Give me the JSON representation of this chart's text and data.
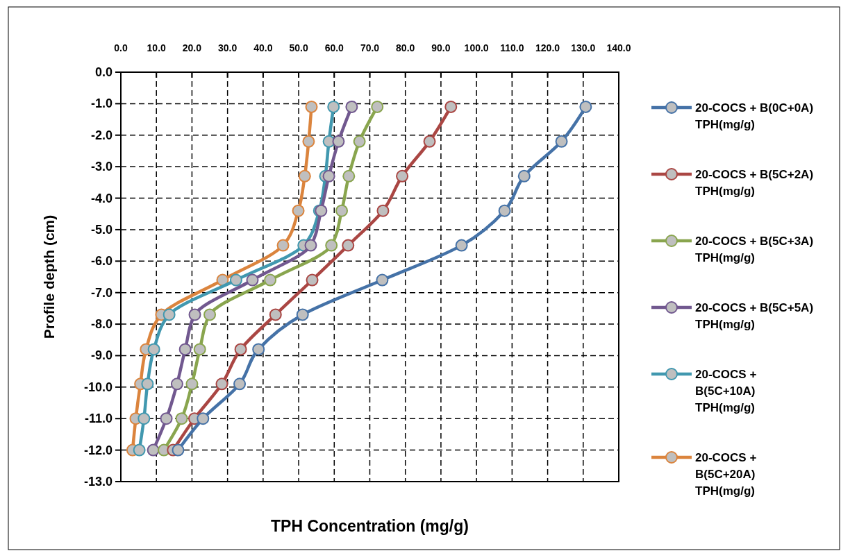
{
  "chart_data": {
    "type": "line",
    "xlabel": "TPH Concentration (mg/g)",
    "ylabel": "Profile depth (cm)",
    "xlim": [
      0,
      140
    ],
    "ylim": [
      -13,
      0
    ],
    "xticks": [
      {
        "value": 0,
        "label": "0.0"
      },
      {
        "value": 10,
        "label": "10.0"
      },
      {
        "value": 20,
        "label": "20.0"
      },
      {
        "value": 30,
        "label": "30.0"
      },
      {
        "value": 40,
        "label": "40.0"
      },
      {
        "value": 50,
        "label": "50.0"
      },
      {
        "value": 60,
        "label": "60.0"
      },
      {
        "value": 70,
        "label": "70.0"
      },
      {
        "value": 80,
        "label": "80.0"
      },
      {
        "value": 90,
        "label": "90.0"
      },
      {
        "value": 100,
        "label": "100.0"
      },
      {
        "value": 110,
        "label": "110.0"
      },
      {
        "value": 120,
        "label": "120.0"
      },
      {
        "value": 130,
        "label": "130.0"
      },
      {
        "value": 140,
        "label": "140.0"
      }
    ],
    "yticks": [
      {
        "value": 0,
        "label": "0.0"
      },
      {
        "value": -1,
        "label": "-1.0"
      },
      {
        "value": -2,
        "label": "-2.0"
      },
      {
        "value": -3,
        "label": "-3.0"
      },
      {
        "value": -4,
        "label": "-4.0"
      },
      {
        "value": -5,
        "label": "-5.0"
      },
      {
        "value": -6,
        "label": "-6.0"
      },
      {
        "value": -7,
        "label": "-7.0"
      },
      {
        "value": -8,
        "label": "-8.0"
      },
      {
        "value": -9,
        "label": "-9.0"
      },
      {
        "value": -10,
        "label": "-10.0"
      },
      {
        "value": -11,
        "label": "-11.0"
      },
      {
        "value": -12,
        "label": "-12.0"
      },
      {
        "value": -13,
        "label": "-13.0"
      }
    ],
    "grid": true,
    "legend": "right",
    "marker": "circle",
    "line_style": "solid",
    "series": [
      {
        "name": "20-COCS + B(0C+0A) TPH(mg/g)",
        "color": "#4572a7",
        "x": [
          130.7,
          123.9,
          113.4,
          107.9,
          95.8,
          73.5,
          51.1,
          38.7,
          33.4,
          23.1,
          16.1
        ],
        "values": [
          -1.1,
          -2.2,
          -3.3,
          -4.4,
          -5.5,
          -6.6,
          -7.7,
          -8.8,
          -9.9,
          -11,
          -12
        ]
      },
      {
        "name": "20-COCS + B(5C+2A) TPH(mg/g)",
        "color": "#aa4643",
        "x": [
          92.8,
          86.8,
          79.1,
          73.7,
          63.9,
          53.8,
          43.5,
          33.7,
          28.4,
          20.7,
          14.7
        ],
        "values": [
          -1.1,
          -2.2,
          -3.3,
          -4.4,
          -5.5,
          -6.6,
          -7.7,
          -8.8,
          -9.9,
          -11,
          -12
        ]
      },
      {
        "name": "20-COCS + B(5C+3A) TPH(mg/g)",
        "color": "#89a54e",
        "x": [
          72.1,
          67.1,
          64.1,
          62.1,
          59.2,
          42.0,
          25.0,
          22.2,
          20.0,
          17.1,
          12.1
        ],
        "values": [
          -1.1,
          -2.2,
          -3.3,
          -4.4,
          -5.5,
          -6.6,
          -7.7,
          -8.8,
          -9.9,
          -11,
          -12
        ]
      },
      {
        "name": "20-COCS + B(5C+5A) TPH(mg/g)",
        "color": "#71588f",
        "x": [
          64.9,
          61.2,
          58.5,
          56.3,
          53.4,
          37.0,
          20.8,
          18.1,
          15.8,
          12.8,
          9.1
        ],
        "values": [
          -1.1,
          -2.2,
          -3.3,
          -4.4,
          -5.5,
          -6.6,
          -7.7,
          -8.8,
          -9.9,
          -11,
          -12
        ]
      },
      {
        "name": "20-COCS + B(5C+10A) TPH(mg/g)",
        "color": "#4198af",
        "x": [
          59.8,
          58.5,
          57.5,
          55.8,
          51.4,
          32.4,
          13.6,
          9.3,
          7.5,
          6.5,
          5.2
        ],
        "values": [
          -1.1,
          -2.2,
          -3.3,
          -4.4,
          -5.5,
          -6.6,
          -7.7,
          -8.8,
          -9.9,
          -11,
          -12
        ]
      },
      {
        "name": "20-COCS + B(5C+20A) TPH(mg/g)",
        "color": "#db843d",
        "x": [
          53.6,
          52.8,
          51.7,
          49.9,
          45.6,
          28.6,
          11.4,
          7.1,
          5.5,
          4.2,
          3.3
        ],
        "values": [
          -1.1,
          -2.2,
          -3.3,
          -4.4,
          -5.5,
          -6.6,
          -7.7,
          -8.8,
          -9.9,
          -11,
          -12
        ]
      }
    ]
  }
}
